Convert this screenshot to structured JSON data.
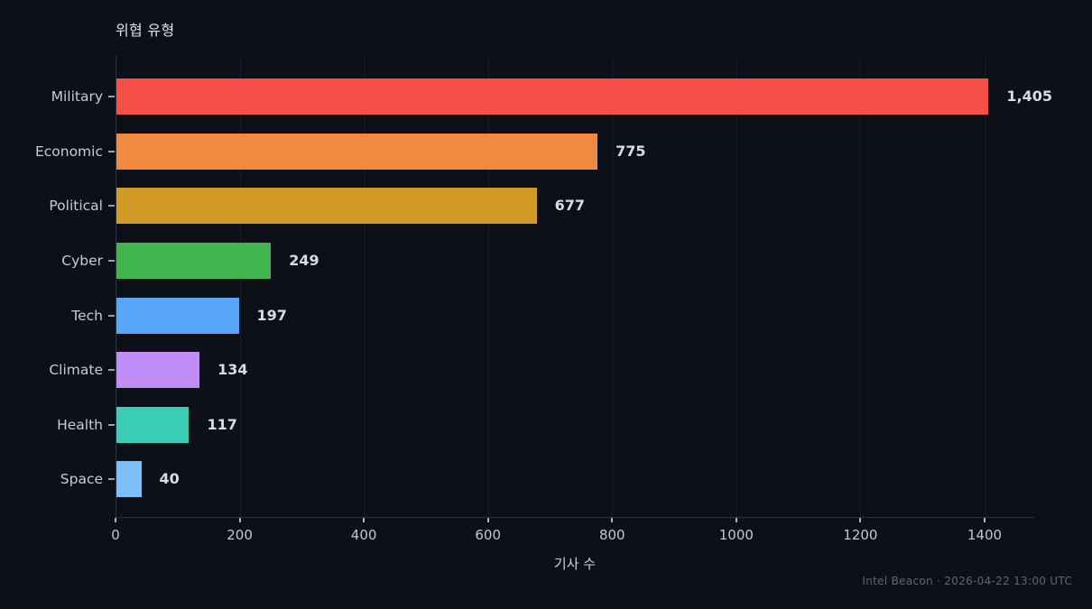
{
  "title": "위협 유형",
  "footer": "Intel Beacon · 2026-04-22 13:00 UTC",
  "colors": {
    "background": "#0d1017",
    "gridline": "#171c26",
    "spine": "#2a3140",
    "tick_mark": "#aeb4bd",
    "tick_label_text": "#c3c8d0",
    "category_label_text": "#c7ccd4",
    "value_label_text": "#d9dce1",
    "title_text": "#dde1e7",
    "footer_text": "#5f6774"
  },
  "chart_data": {
    "type": "bar",
    "orientation": "horizontal",
    "title": "위협 유형",
    "categories": [
      "Military",
      "Economic",
      "Political",
      "Cyber",
      "Tech",
      "Climate",
      "Health",
      "Space"
    ],
    "values": [
      1405,
      775,
      677,
      249,
      197,
      134,
      117,
      40
    ],
    "value_labels": [
      "1,405",
      "775",
      "677",
      "249",
      "197",
      "134",
      "117",
      "40"
    ],
    "bar_colors": [
      "#f6504a",
      "#f08a3e",
      "#d19a26",
      "#41b650",
      "#58a6fa",
      "#c08df6",
      "#3acfb4",
      "#7dc0f8"
    ],
    "xlabel": "기사 수",
    "ylabel": "",
    "xlim": [
      0,
      1480
    ],
    "x_ticks": [
      0,
      200,
      400,
      600,
      800,
      1000,
      1200,
      1400
    ],
    "grid": "vertical-only",
    "legend": "none",
    "bar_label_position": "outside-right"
  }
}
